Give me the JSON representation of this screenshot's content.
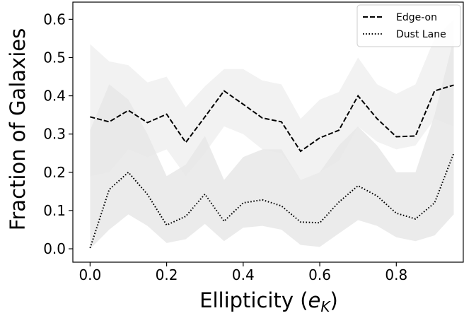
{
  "chart_data": {
    "type": "line",
    "xlabel_main": "Ellipticity (",
    "xlabel_sym": "e",
    "xlabel_sub": "K",
    "xlabel_close": ")",
    "ylabel": "Fraction of Galaxies",
    "xlim": [
      -0.045,
      0.975
    ],
    "ylim": [
      -0.035,
      0.645
    ],
    "xticks": [
      0.0,
      0.2,
      0.4,
      0.6,
      0.8
    ],
    "xtick_labels": [
      "0.0",
      "0.2",
      "0.4",
      "0.6",
      "0.8"
    ],
    "yticks": [
      0.0,
      0.1,
      0.2,
      0.3,
      0.4,
      0.5,
      0.6
    ],
    "ytick_labels": [
      "0.0",
      "0.1",
      "0.2",
      "0.3",
      "0.4",
      "0.5",
      "0.6"
    ],
    "legend_position": "top-right",
    "grid": false,
    "x": [
      0.0,
      0.05,
      0.1,
      0.15,
      0.2,
      0.25,
      0.3,
      0.35,
      0.4,
      0.45,
      0.5,
      0.55,
      0.6,
      0.65,
      0.7,
      0.75,
      0.8,
      0.85,
      0.9,
      0.95
    ],
    "series": [
      {
        "name": "Edge-on",
        "dash": "dashed",
        "band_color": "#f0f0f0",
        "values": [
          0.345,
          0.332,
          0.362,
          0.33,
          0.352,
          0.278,
          0.345,
          0.413,
          0.378,
          0.342,
          0.332,
          0.255,
          0.29,
          0.31,
          0.4,
          0.34,
          0.293,
          0.295,
          0.413,
          0.428
        ],
        "upper": [
          0.535,
          0.49,
          0.48,
          0.435,
          0.45,
          0.37,
          0.425,
          0.47,
          0.47,
          0.44,
          0.43,
          0.34,
          0.39,
          0.41,
          0.5,
          0.43,
          0.405,
          0.43,
          0.55,
          0.6
        ],
        "lower": [
          0.19,
          0.2,
          0.26,
          0.24,
          0.26,
          0.19,
          0.25,
          0.32,
          0.3,
          0.26,
          0.25,
          0.18,
          0.2,
          0.23,
          0.32,
          0.28,
          0.26,
          0.27,
          0.34,
          0.32
        ]
      },
      {
        "name": "Dust Lane",
        "dash": "dotted",
        "band_color": "#e6e6e6",
        "values": [
          0.002,
          0.155,
          0.2,
          0.142,
          0.062,
          0.085,
          0.143,
          0.072,
          0.12,
          0.128,
          0.112,
          0.07,
          0.068,
          0.122,
          0.165,
          0.138,
          0.093,
          0.078,
          0.12,
          0.25
        ],
        "upper": [
          0.31,
          0.43,
          0.39,
          0.3,
          0.19,
          0.22,
          0.295,
          0.18,
          0.24,
          0.26,
          0.26,
          0.18,
          0.2,
          0.27,
          0.32,
          0.27,
          0.2,
          0.2,
          0.35,
          0.55
        ],
        "lower": [
          0.0,
          0.05,
          0.09,
          0.06,
          0.015,
          0.025,
          0.065,
          0.02,
          0.055,
          0.06,
          0.05,
          0.01,
          0.005,
          0.04,
          0.075,
          0.06,
          0.03,
          0.02,
          0.035,
          0.09
        ]
      }
    ]
  }
}
